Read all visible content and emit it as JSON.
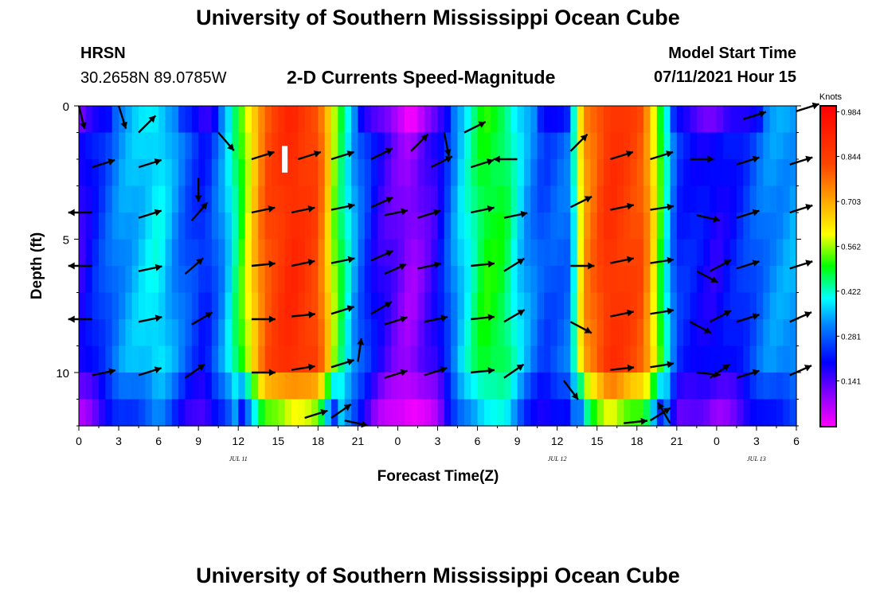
{
  "header": {
    "title": "University of Southern Mississippi Ocean Cube",
    "station": "HRSN",
    "coords": "30.2658N  89.0785W",
    "plot_title": "2-D Currents Speed-Magnitude",
    "model_label": "Model Start Time",
    "model_time": "07/11/2021 Hour 15"
  },
  "footer": {
    "title": "University of Southern Mississippi Ocean Cube"
  },
  "chart_data": {
    "type": "heatmap",
    "title": "2-D Currents Speed-Magnitude",
    "xlabel": "Forecast Time(Z)",
    "ylabel": "Depth (ft)",
    "x_hours": [
      0,
      54
    ],
    "ylim": [
      0,
      12
    ],
    "y_reversed": true,
    "x_ticks": [
      "0",
      "3",
      "6",
      "9",
      "12",
      "15",
      "18",
      "21",
      "0",
      "3",
      "6",
      "9",
      "12",
      "15",
      "18",
      "21",
      "0",
      "3",
      "6"
    ],
    "y_ticks": [
      {
        "label": "0",
        "value": 0
      },
      {
        "label": "5",
        "value": 5
      },
      {
        "label": "10",
        "value": 10
      }
    ],
    "date_labels": [
      {
        "label": "JUL 11",
        "hour": 12
      },
      {
        "label": "JUL 12",
        "hour": 36
      },
      {
        "label": "JUL 13",
        "hour": 51
      }
    ],
    "colorbar": {
      "units": "Knots",
      "min": 0.0,
      "max": 1.0,
      "ticks": [
        "0.984",
        "0.844",
        "0.703",
        "0.562",
        "0.422",
        "0.281",
        "0.141"
      ],
      "tick_values": [
        0.984,
        0.844,
        0.703,
        0.562,
        0.422,
        0.281,
        0.141
      ]
    },
    "speed_profile": [
      {
        "t": 0,
        "s": 0.16
      },
      {
        "t": 3,
        "s": 0.32
      },
      {
        "t": 6,
        "s": 0.4
      },
      {
        "t": 8,
        "s": 0.28
      },
      {
        "t": 9.5,
        "s": 0.22
      },
      {
        "t": 11,
        "s": 0.34
      },
      {
        "t": 12.5,
        "s": 0.55
      },
      {
        "t": 14,
        "s": 0.8
      },
      {
        "t": 16,
        "s": 0.9
      },
      {
        "t": 18,
        "s": 0.82
      },
      {
        "t": 19.5,
        "s": 0.5
      },
      {
        "t": 21,
        "s": 0.3
      },
      {
        "t": 22.5,
        "s": 0.18
      },
      {
        "t": 25,
        "s": 0.08
      },
      {
        "t": 27,
        "s": 0.18
      },
      {
        "t": 28.5,
        "s": 0.35
      },
      {
        "t": 30.5,
        "s": 0.5
      },
      {
        "t": 32,
        "s": 0.48
      },
      {
        "t": 33.5,
        "s": 0.35
      },
      {
        "t": 35,
        "s": 0.26
      },
      {
        "t": 37,
        "s": 0.3
      },
      {
        "t": 38,
        "s": 0.72
      },
      {
        "t": 40,
        "s": 0.88
      },
      {
        "t": 42.5,
        "s": 0.8
      },
      {
        "t": 44,
        "s": 0.45
      },
      {
        "t": 45,
        "s": 0.24
      },
      {
        "t": 47,
        "s": 0.2
      },
      {
        "t": 48,
        "s": 0.18
      },
      {
        "t": 50,
        "s": 0.24
      },
      {
        "t": 52,
        "s": 0.32
      },
      {
        "t": 54,
        "s": 0.34
      }
    ],
    "depth_rows": [
      0.5,
      1.5,
      2.5,
      3.5,
      4.5,
      5.5,
      6.5,
      7.5,
      8.5,
      9.5,
      10.5,
      11.5
    ],
    "vectors": [
      {
        "t": 0,
        "d": 0,
        "dx": 0.25,
        "dy": 1.0
      },
      {
        "t": 3,
        "d": 0,
        "dx": 0.3,
        "dy": 0.95
      },
      {
        "t": 4.5,
        "d": 1,
        "dx": 0.7,
        "dy": -0.7
      },
      {
        "t": 10.5,
        "d": 1,
        "dx": 0.65,
        "dy": 0.75
      },
      {
        "t": 27.5,
        "d": 1,
        "dx": 0.2,
        "dy": 1.0
      },
      {
        "t": 29,
        "d": 1,
        "dx": 0.9,
        "dy": -0.45
      },
      {
        "t": 50,
        "d": 0.5,
        "dx": 0.95,
        "dy": -0.3
      },
      {
        "t": 54,
        "d": 0.2,
        "dx": 0.95,
        "dy": -0.3
      },
      {
        "t": 1,
        "d": 2.3,
        "dx": 0.95,
        "dy": -0.3
      },
      {
        "t": 4.5,
        "d": 2.3,
        "dx": 0.95,
        "dy": -0.3
      },
      {
        "t": 9,
        "d": 2.7,
        "dx": 0,
        "dy": 1
      },
      {
        "t": 13,
        "d": 2,
        "dx": 0.95,
        "dy": -0.3
      },
      {
        "t": 16.5,
        "d": 2,
        "dx": 0.95,
        "dy": -0.3
      },
      {
        "t": 19,
        "d": 2,
        "dx": 0.95,
        "dy": -0.3
      },
      {
        "t": 22,
        "d": 2,
        "dx": 0.9,
        "dy": -0.45
      },
      {
        "t": 25,
        "d": 1.7,
        "dx": 0.7,
        "dy": -0.7
      },
      {
        "t": 26.5,
        "d": 2.3,
        "dx": 0.9,
        "dy": -0.45
      },
      {
        "t": 29.5,
        "d": 2.3,
        "dx": 0.95,
        "dy": -0.3
      },
      {
        "t": 33,
        "d": 2,
        "dx": -1,
        "dy": 0
      },
      {
        "t": 37,
        "d": 1.7,
        "dx": 0.7,
        "dy": -0.7
      },
      {
        "t": 40,
        "d": 2,
        "dx": 0.95,
        "dy": -0.3
      },
      {
        "t": 43,
        "d": 2,
        "dx": 0.95,
        "dy": -0.3
      },
      {
        "t": 46,
        "d": 2,
        "dx": 1,
        "dy": 0
      },
      {
        "t": 49.5,
        "d": 2.2,
        "dx": 0.95,
        "dy": -0.3
      },
      {
        "t": 53.5,
        "d": 2.2,
        "dx": 0.95,
        "dy": -0.3
      },
      {
        "t": 1,
        "d": 4,
        "dx": -1,
        "dy": 0
      },
      {
        "t": 4.5,
        "d": 4.2,
        "dx": 0.95,
        "dy": -0.3
      },
      {
        "t": 8.5,
        "d": 4.3,
        "dx": 0.65,
        "dy": -0.75
      },
      {
        "t": 13,
        "d": 4,
        "dx": 0.95,
        "dy": -0.2
      },
      {
        "t": 16,
        "d": 4,
        "dx": 0.95,
        "dy": -0.2
      },
      {
        "t": 19,
        "d": 3.9,
        "dx": 0.95,
        "dy": -0.2
      },
      {
        "t": 22,
        "d": 3.8,
        "dx": 0.9,
        "dy": -0.4
      },
      {
        "t": 23,
        "d": 4.1,
        "dx": 0.95,
        "dy": -0.2
      },
      {
        "t": 25.5,
        "d": 4.2,
        "dx": 0.95,
        "dy": -0.3
      },
      {
        "t": 29.5,
        "d": 4,
        "dx": 0.95,
        "dy": -0.2
      },
      {
        "t": 32,
        "d": 4.2,
        "dx": 0.95,
        "dy": -0.2
      },
      {
        "t": 37,
        "d": 3.8,
        "dx": 0.9,
        "dy": -0.45
      },
      {
        "t": 40,
        "d": 3.9,
        "dx": 0.95,
        "dy": -0.2
      },
      {
        "t": 43,
        "d": 3.9,
        "dx": 0.95,
        "dy": -0.15
      },
      {
        "t": 46.5,
        "d": 4.1,
        "dx": 0.9,
        "dy": 0.2
      },
      {
        "t": 49.5,
        "d": 4.2,
        "dx": 0.95,
        "dy": -0.3
      },
      {
        "t": 53.5,
        "d": 4,
        "dx": 0.95,
        "dy": -0.3
      },
      {
        "t": 1,
        "d": 6,
        "dx": -1,
        "dy": 0
      },
      {
        "t": 4.5,
        "d": 6.2,
        "dx": 0.95,
        "dy": -0.2
      },
      {
        "t": 8,
        "d": 6.3,
        "dx": 0.75,
        "dy": -0.65
      },
      {
        "t": 13,
        "d": 6,
        "dx": 0.95,
        "dy": -0.1
      },
      {
        "t": 16,
        "d": 6,
        "dx": 0.95,
        "dy": -0.2
      },
      {
        "t": 19,
        "d": 5.9,
        "dx": 0.95,
        "dy": -0.2
      },
      {
        "t": 22,
        "d": 5.8,
        "dx": 0.9,
        "dy": -0.4
      },
      {
        "t": 23,
        "d": 6.3,
        "dx": 0.9,
        "dy": -0.4
      },
      {
        "t": 25.5,
        "d": 6.1,
        "dx": 0.95,
        "dy": -0.2
      },
      {
        "t": 29.5,
        "d": 6,
        "dx": 0.95,
        "dy": -0.1
      },
      {
        "t": 32,
        "d": 6.2,
        "dx": 0.8,
        "dy": -0.5
      },
      {
        "t": 37,
        "d": 6,
        "dx": 1,
        "dy": 0
      },
      {
        "t": 40,
        "d": 5.9,
        "dx": 0.95,
        "dy": -0.2
      },
      {
        "t": 43,
        "d": 5.9,
        "dx": 0.95,
        "dy": -0.15
      },
      {
        "t": 46.5,
        "d": 6.2,
        "dx": 0.85,
        "dy": 0.45
      },
      {
        "t": 47.5,
        "d": 6.2,
        "dx": 0.85,
        "dy": -0.45
      },
      {
        "t": 49.5,
        "d": 6.1,
        "dx": 0.95,
        "dy": -0.3
      },
      {
        "t": 53.5,
        "d": 6.1,
        "dx": 0.95,
        "dy": -0.3
      },
      {
        "t": 1,
        "d": 8,
        "dx": -1,
        "dy": 0
      },
      {
        "t": 4.5,
        "d": 8.1,
        "dx": 0.95,
        "dy": -0.2
      },
      {
        "t": 8.5,
        "d": 8.2,
        "dx": 0.85,
        "dy": -0.5
      },
      {
        "t": 13,
        "d": 8,
        "dx": 1,
        "dy": 0
      },
      {
        "t": 16,
        "d": 7.9,
        "dx": 0.95,
        "dy": -0.1
      },
      {
        "t": 19,
        "d": 7.8,
        "dx": 0.95,
        "dy": -0.3
      },
      {
        "t": 22,
        "d": 7.8,
        "dx": 0.85,
        "dy": -0.5
      },
      {
        "t": 23,
        "d": 8.2,
        "dx": 0.95,
        "dy": -0.3
      },
      {
        "t": 26,
        "d": 8.1,
        "dx": 0.95,
        "dy": -0.2
      },
      {
        "t": 29.5,
        "d": 8,
        "dx": 0.95,
        "dy": -0.1
      },
      {
        "t": 32,
        "d": 8.1,
        "dx": 0.85,
        "dy": -0.5
      },
      {
        "t": 37,
        "d": 8.1,
        "dx": 0.85,
        "dy": 0.45
      },
      {
        "t": 40,
        "d": 7.9,
        "dx": 0.95,
        "dy": -0.2
      },
      {
        "t": 43,
        "d": 7.8,
        "dx": 0.95,
        "dy": -0.15
      },
      {
        "t": 46,
        "d": 8.1,
        "dx": 0.85,
        "dy": 0.45
      },
      {
        "t": 47.5,
        "d": 8.1,
        "dx": 0.85,
        "dy": -0.45
      },
      {
        "t": 49.5,
        "d": 8.1,
        "dx": 0.95,
        "dy": -0.3
      },
      {
        "t": 53.5,
        "d": 8.1,
        "dx": 0.9,
        "dy": -0.4
      },
      {
        "t": 1,
        "d": 10.1,
        "dx": 0.95,
        "dy": -0.2
      },
      {
        "t": 4.5,
        "d": 10.1,
        "dx": 0.95,
        "dy": -0.3
      },
      {
        "t": 8,
        "d": 10.2,
        "dx": 0.8,
        "dy": -0.55
      },
      {
        "t": 13,
        "d": 10,
        "dx": 1,
        "dy": 0
      },
      {
        "t": 16,
        "d": 9.9,
        "dx": 0.95,
        "dy": -0.15
      },
      {
        "t": 19,
        "d": 9.8,
        "dx": 0.95,
        "dy": -0.3
      },
      {
        "t": 21,
        "d": 9.6,
        "dx": 0.15,
        "dy": -1
      },
      {
        "t": 23,
        "d": 10.2,
        "dx": 0.95,
        "dy": -0.3
      },
      {
        "t": 26,
        "d": 10.1,
        "dx": 0.95,
        "dy": -0.3
      },
      {
        "t": 29.5,
        "d": 10,
        "dx": 0.95,
        "dy": -0.1
      },
      {
        "t": 32,
        "d": 10.2,
        "dx": 0.8,
        "dy": -0.55
      },
      {
        "t": 36.5,
        "d": 10.3,
        "dx": 0.6,
        "dy": 0.8
      },
      {
        "t": 40,
        "d": 9.9,
        "dx": 0.95,
        "dy": -0.1
      },
      {
        "t": 43,
        "d": 9.8,
        "dx": 0.95,
        "dy": -0.15
      },
      {
        "t": 46.5,
        "d": 10,
        "dx": 0.95,
        "dy": 0.1
      },
      {
        "t": 47.5,
        "d": 10.2,
        "dx": 0.8,
        "dy": -0.55
      },
      {
        "t": 49.5,
        "d": 10.2,
        "dx": 0.95,
        "dy": -0.3
      },
      {
        "t": 53.5,
        "d": 10.1,
        "dx": 0.9,
        "dy": -0.4
      },
      {
        "t": 17,
        "d": 11.7,
        "dx": 0.95,
        "dy": -0.3
      },
      {
        "t": 19,
        "d": 11.7,
        "dx": 0.8,
        "dy": -0.55
      },
      {
        "t": 20,
        "d": 11.8,
        "dx": 0.95,
        "dy": 0.2
      },
      {
        "t": 41,
        "d": 11.9,
        "dx": 0.95,
        "dy": -0.1
      },
      {
        "t": 43,
        "d": 11.8,
        "dx": 0.8,
        "dy": -0.5
      },
      {
        "t": 44.5,
        "d": 11.9,
        "dx": -0.5,
        "dy": -0.85
      }
    ],
    "marker": {
      "t": 15.5,
      "d0": 1.5,
      "d1": 2.5,
      "color": "#ffffff"
    }
  }
}
